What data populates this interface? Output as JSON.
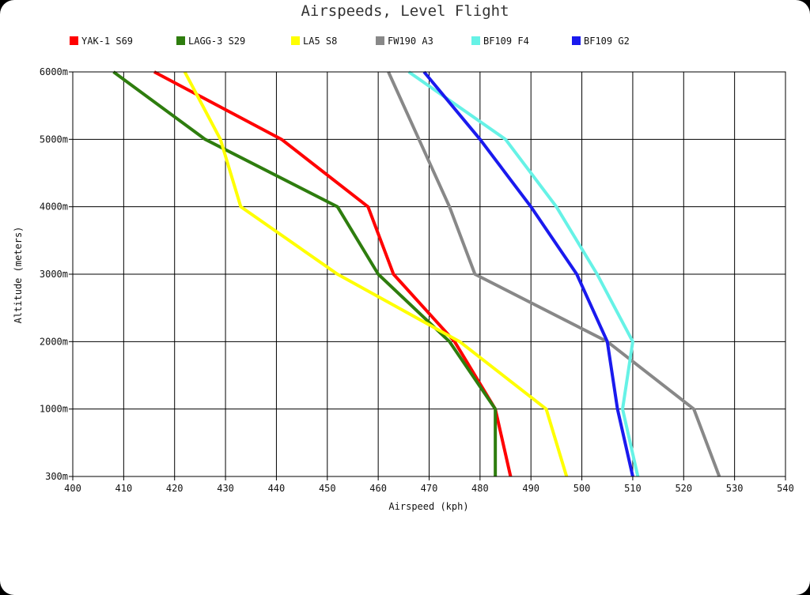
{
  "chart_data": {
    "type": "line",
    "title": "Airspeeds, Level Flight",
    "xlabel": "Airspeed (kph)",
    "ylabel": "Altitude (meters)",
    "xlim": [
      400,
      540
    ],
    "x_ticks": [
      400,
      410,
      420,
      430,
      440,
      450,
      460,
      470,
      480,
      490,
      500,
      510,
      520,
      530,
      540
    ],
    "y_ticks": [
      {
        "value": 300,
        "label": "300m"
      },
      {
        "value": 1000,
        "label": "1000m"
      },
      {
        "value": 2000,
        "label": "2000m"
      },
      {
        "value": 3000,
        "label": "3000m"
      },
      {
        "value": 4000,
        "label": "4000m"
      },
      {
        "value": 5000,
        "label": "5000m"
      },
      {
        "value": 6000,
        "label": "6000m"
      }
    ],
    "grid": true,
    "legend_position": "top",
    "altitudes": [
      300,
      1000,
      2000,
      3000,
      4000,
      5000,
      6000
    ],
    "series": [
      {
        "name": "YAK-1 S69",
        "color": "#ff0000",
        "values": [
          486,
          483,
          475,
          463,
          458,
          441,
          416
        ]
      },
      {
        "name": "LAGG-3 S29",
        "color": "#2e7d0e",
        "values": [
          483,
          483,
          474,
          460,
          452,
          426,
          408
        ]
      },
      {
        "name": "LA5 S8",
        "color": "#ffff00",
        "values": [
          497,
          493,
          476,
          452,
          433,
          429,
          422
        ]
      },
      {
        "name": "FW190 A3",
        "color": "#888888",
        "values": [
          527,
          522,
          505,
          479,
          474,
          468,
          462
        ]
      },
      {
        "name": "BF109 F4",
        "color": "#66f2e6",
        "values": [
          511,
          508,
          510,
          503,
          495,
          485,
          466
        ]
      },
      {
        "name": "BF109 G2",
        "color": "#1a1aee",
        "values": [
          510,
          507,
          505,
          499,
          490,
          480,
          469
        ]
      }
    ]
  }
}
